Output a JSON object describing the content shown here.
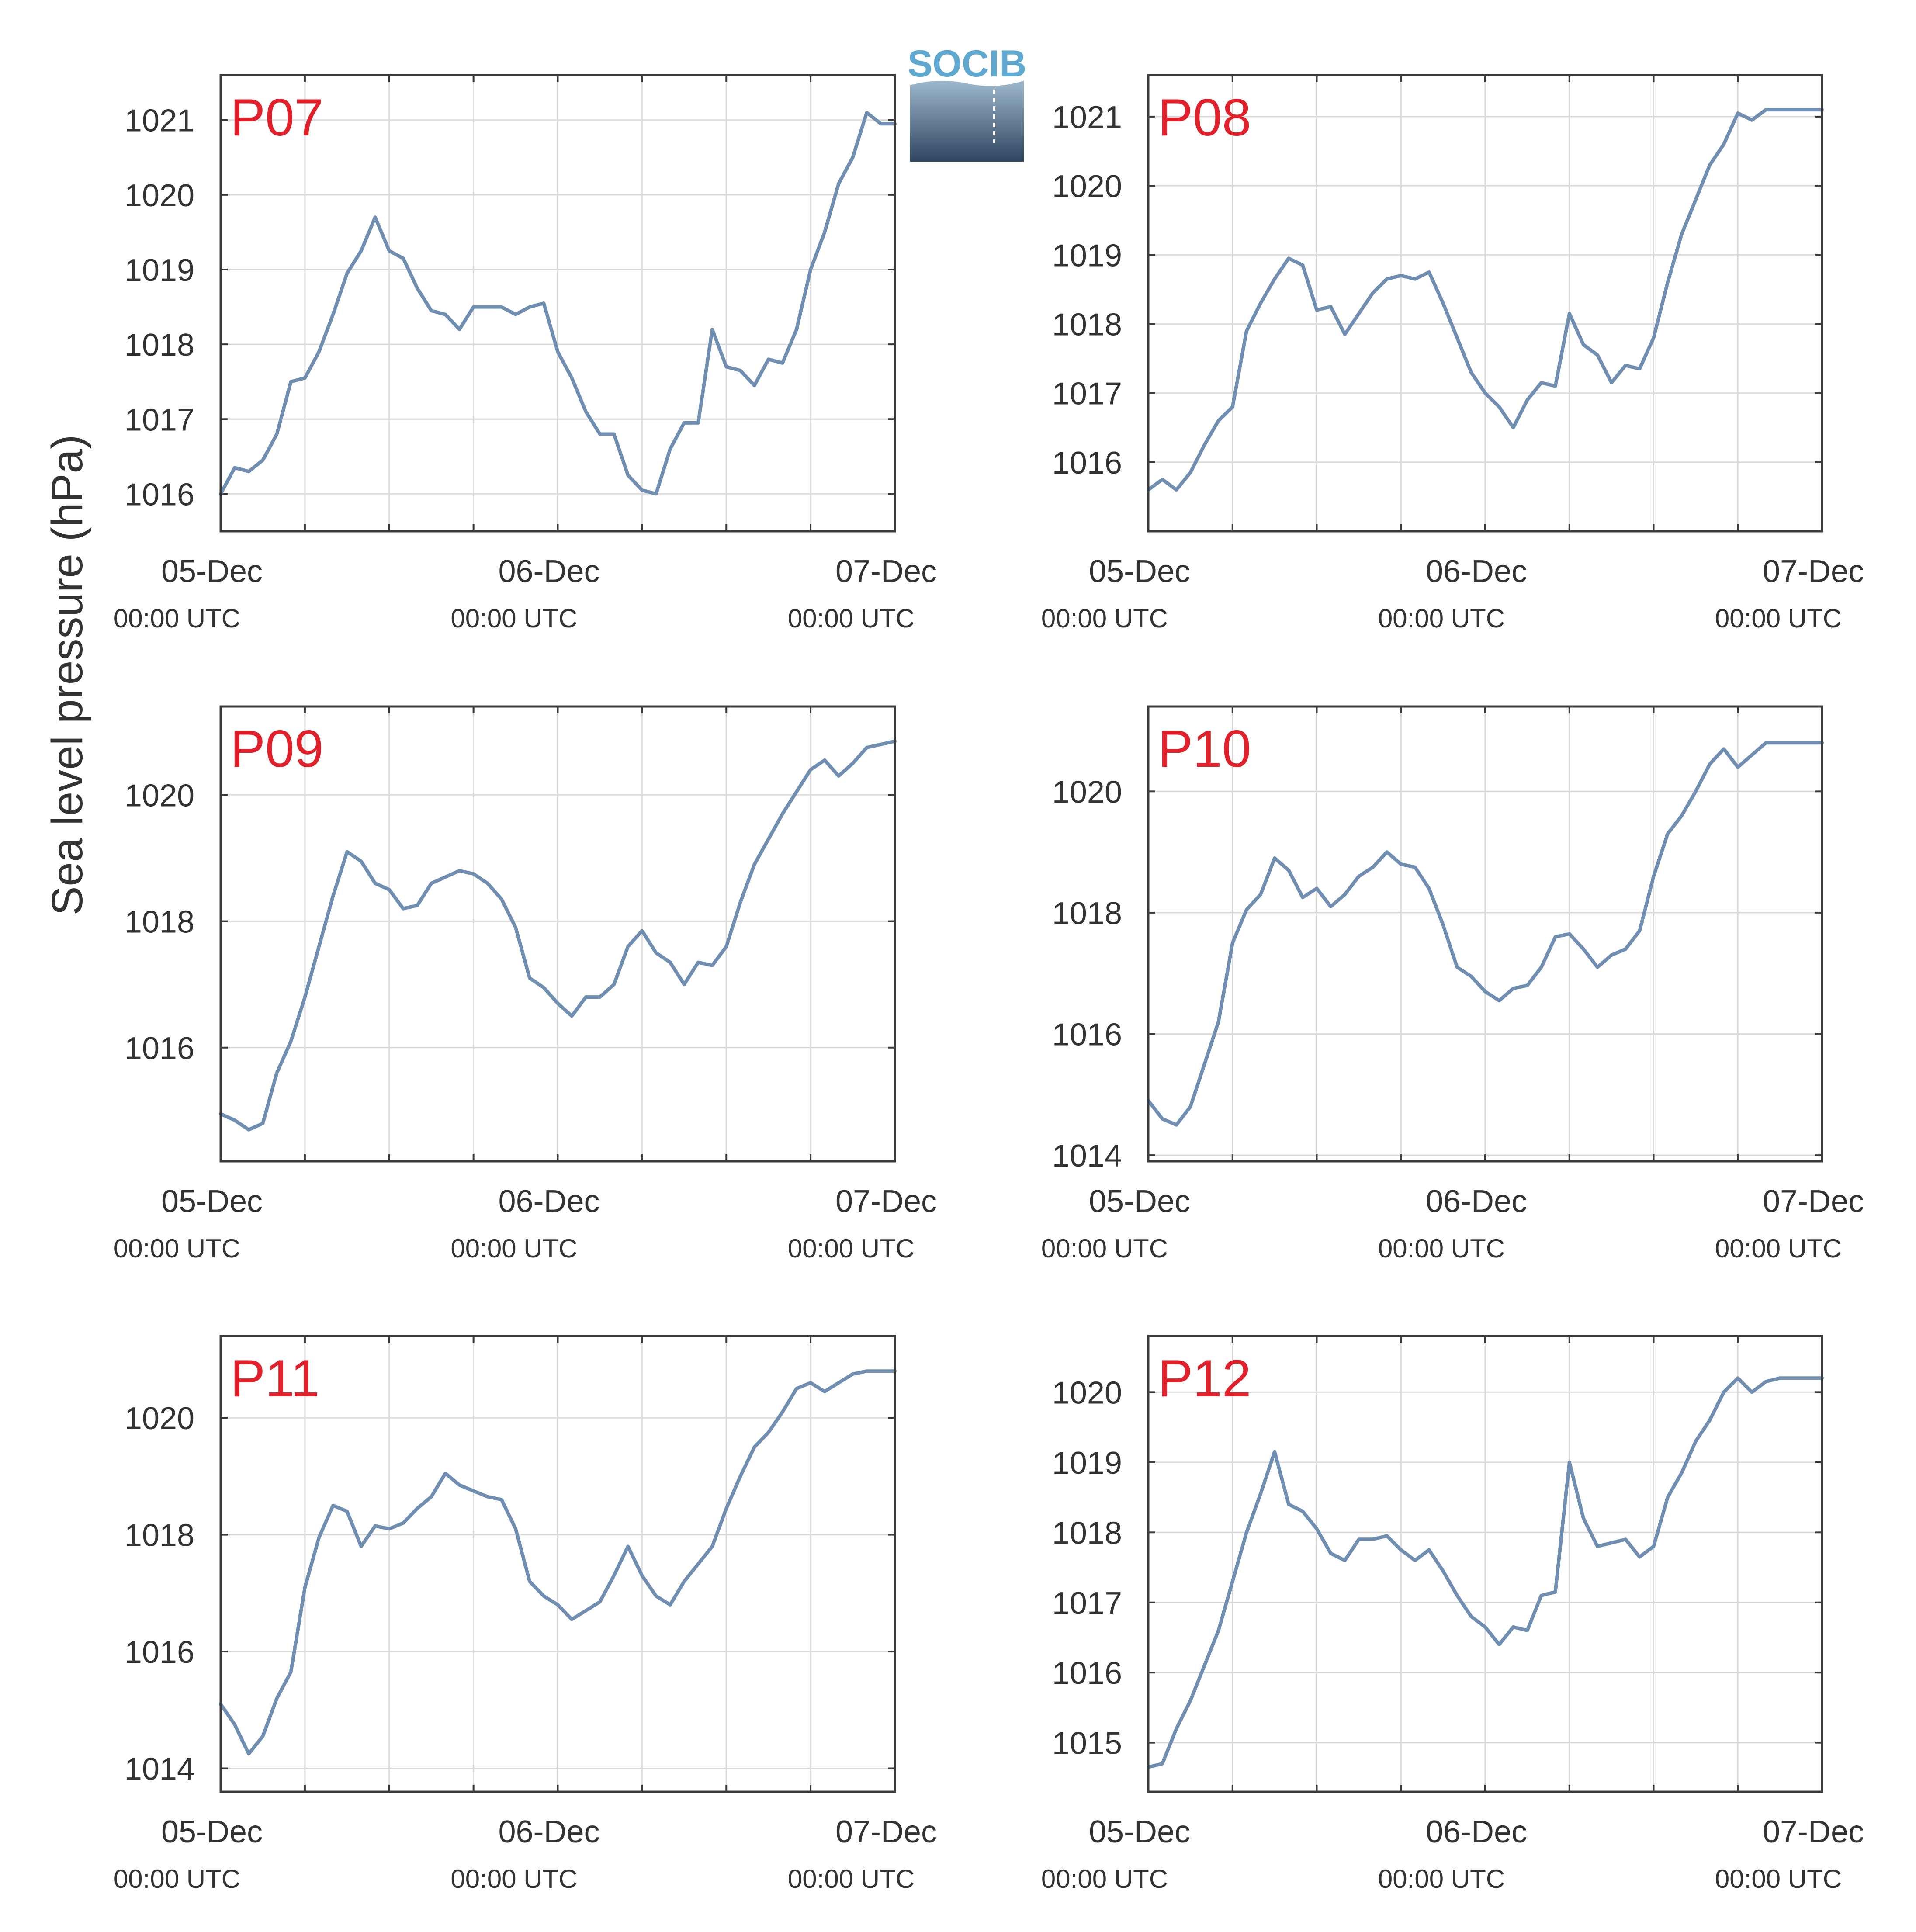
{
  "figure": {
    "ylabel": "Sea level pressure (hPa)",
    "logo_text": "SOCIB",
    "colors": {
      "line": "#6f8eb1",
      "panel_label": "#e0202a",
      "frame": "#3a3a3a",
      "grid": "#d9d9d9",
      "text": "#333333",
      "logo_top": "#5fa8cf",
      "logo_bottom": "#2e4660"
    }
  },
  "chart_data": [
    {
      "type": "line",
      "label": "P07",
      "x_range": [
        "05-Dec 00:00",
        "07-Dec 00:00"
      ],
      "ylim": [
        1015.5,
        1021.6
      ],
      "yticks": [
        1016,
        1017,
        1018,
        1019,
        1020,
        1021
      ],
      "xticks": [
        {
          "date": "05-Dec",
          "time": "00:00 UTC"
        },
        {
          "date": "06-Dec",
          "time": "00:00 UTC"
        },
        {
          "date": "07-Dec",
          "time": "00:00 UTC"
        }
      ],
      "grid": true,
      "x_hours": [
        0,
        1,
        2,
        3,
        4,
        5,
        6,
        7,
        8,
        9,
        10,
        11,
        12,
        13,
        14,
        15,
        16,
        17,
        18,
        19,
        20,
        21,
        22,
        23,
        24,
        25,
        26,
        27,
        28,
        29,
        30,
        31,
        32,
        33,
        34,
        35,
        36,
        37,
        38,
        39,
        40,
        41,
        42,
        43,
        44,
        45,
        46,
        47,
        48
      ],
      "values": [
        1016.0,
        1016.35,
        1016.3,
        1016.45,
        1016.8,
        1017.5,
        1017.55,
        1017.9,
        1018.4,
        1018.95,
        1019.25,
        1019.7,
        1019.25,
        1019.15,
        1018.75,
        1018.45,
        1018.4,
        1018.2,
        1018.5,
        1018.5,
        1018.5,
        1018.4,
        1018.5,
        1018.55,
        1017.9,
        1017.55,
        1017.1,
        1016.8,
        1016.8,
        1016.25,
        1016.05,
        1016.0,
        1016.6,
        1016.95,
        1016.95,
        1018.2,
        1017.7,
        1017.65,
        1017.45,
        1017.8,
        1017.75,
        1018.2,
        1019.0,
        1019.5,
        1020.15,
        1020.5,
        1021.1,
        1020.95,
        1020.95
      ]
    },
    {
      "type": "line",
      "label": "P08",
      "x_range": [
        "05-Dec 00:00",
        "07-Dec 00:00"
      ],
      "ylim": [
        1015.0,
        1021.6
      ],
      "yticks": [
        1016,
        1017,
        1018,
        1019,
        1020,
        1021
      ],
      "xticks": [
        {
          "date": "05-Dec",
          "time": "00:00 UTC"
        },
        {
          "date": "06-Dec",
          "time": "00:00 UTC"
        },
        {
          "date": "07-Dec",
          "time": "00:00 UTC"
        }
      ],
      "grid": true,
      "x_hours": [
        0,
        1,
        2,
        3,
        4,
        5,
        6,
        7,
        8,
        9,
        10,
        11,
        12,
        13,
        14,
        15,
        16,
        17,
        18,
        19,
        20,
        21,
        22,
        23,
        24,
        25,
        26,
        27,
        28,
        29,
        30,
        31,
        32,
        33,
        34,
        35,
        36,
        37,
        38,
        39,
        40,
        41,
        42,
        43,
        44,
        45,
        46,
        47,
        48
      ],
      "values": [
        1015.6,
        1015.75,
        1015.6,
        1015.85,
        1016.25,
        1016.6,
        1016.8,
        1017.9,
        1018.3,
        1018.65,
        1018.95,
        1018.85,
        1018.2,
        1018.25,
        1017.85,
        1018.15,
        1018.45,
        1018.65,
        1018.7,
        1018.65,
        1018.75,
        1018.3,
        1017.8,
        1017.3,
        1017.0,
        1016.8,
        1016.5,
        1016.9,
        1017.15,
        1017.1,
        1018.15,
        1017.7,
        1017.55,
        1017.15,
        1017.4,
        1017.35,
        1017.8,
        1018.6,
        1019.3,
        1019.8,
        1020.3,
        1020.6,
        1021.05,
        1020.95,
        1021.1,
        1021.1,
        1021.1,
        1021.1,
        1021.1
      ]
    },
    {
      "type": "line",
      "label": "P09",
      "x_range": [
        "05-Dec 00:00",
        "07-Dec 00:00"
      ],
      "ylim": [
        1014.2,
        1021.4
      ],
      "yticks": [
        1016,
        1018,
        1020
      ],
      "xticks": [
        {
          "date": "05-Dec",
          "time": "00:00 UTC"
        },
        {
          "date": "06-Dec",
          "time": "00:00 UTC"
        },
        {
          "date": "07-Dec",
          "time": "00:00 UTC"
        }
      ],
      "grid": true,
      "x_hours": [
        0,
        1,
        2,
        3,
        4,
        5,
        6,
        7,
        8,
        9,
        10,
        11,
        12,
        13,
        14,
        15,
        16,
        17,
        18,
        19,
        20,
        21,
        22,
        23,
        24,
        25,
        26,
        27,
        28,
        29,
        30,
        31,
        32,
        33,
        34,
        35,
        36,
        37,
        38,
        39,
        40,
        41,
        42,
        43,
        44,
        45,
        46,
        47,
        48
      ],
      "values": [
        1014.95,
        1014.85,
        1014.7,
        1014.8,
        1015.6,
        1016.1,
        1016.8,
        1017.6,
        1018.4,
        1019.1,
        1018.95,
        1018.6,
        1018.5,
        1018.2,
        1018.25,
        1018.6,
        1018.7,
        1018.8,
        1018.75,
        1018.6,
        1018.35,
        1017.9,
        1017.1,
        1016.95,
        1016.7,
        1016.5,
        1016.8,
        1016.8,
        1017.0,
        1017.6,
        1017.85,
        1017.5,
        1017.35,
        1017.0,
        1017.35,
        1017.3,
        1017.6,
        1018.3,
        1018.9,
        1019.3,
        1019.7,
        1020.05,
        1020.4,
        1020.55,
        1020.3,
        1020.5,
        1020.75,
        1020.8,
        1020.85
      ]
    },
    {
      "type": "line",
      "label": "P10",
      "x_range": [
        "05-Dec 00:00",
        "07-Dec 00:00"
      ],
      "ylim": [
        1013.9,
        1021.4
      ],
      "yticks": [
        1014,
        1016,
        1018,
        1020
      ],
      "xticks": [
        {
          "date": "05-Dec",
          "time": "00:00 UTC"
        },
        {
          "date": "06-Dec",
          "time": "00:00 UTC"
        },
        {
          "date": "07-Dec",
          "time": "00:00 UTC"
        }
      ],
      "grid": true,
      "x_hours": [
        0,
        1,
        2,
        3,
        4,
        5,
        6,
        7,
        8,
        9,
        10,
        11,
        12,
        13,
        14,
        15,
        16,
        17,
        18,
        19,
        20,
        21,
        22,
        23,
        24,
        25,
        26,
        27,
        28,
        29,
        30,
        31,
        32,
        33,
        34,
        35,
        36,
        37,
        38,
        39,
        40,
        41,
        42,
        43,
        44,
        45,
        46,
        47,
        48
      ],
      "values": [
        1014.9,
        1014.6,
        1014.5,
        1014.8,
        1015.5,
        1016.2,
        1017.5,
        1018.05,
        1018.3,
        1018.9,
        1018.7,
        1018.25,
        1018.4,
        1018.1,
        1018.3,
        1018.6,
        1018.75,
        1019.0,
        1018.8,
        1018.75,
        1018.4,
        1017.8,
        1017.1,
        1016.95,
        1016.7,
        1016.55,
        1016.75,
        1016.8,
        1017.1,
        1017.6,
        1017.65,
        1017.4,
        1017.1,
        1017.3,
        1017.4,
        1017.7,
        1018.6,
        1019.3,
        1019.6,
        1020.0,
        1020.45,
        1020.7,
        1020.4,
        1020.6,
        1020.8,
        1020.8,
        1020.8,
        1020.8,
        1020.8
      ]
    },
    {
      "type": "line",
      "label": "P11",
      "x_range": [
        "05-Dec 00:00",
        "07-Dec 00:00"
      ],
      "ylim": [
        1013.6,
        1021.4
      ],
      "yticks": [
        1014,
        1016,
        1018,
        1020
      ],
      "xticks": [
        {
          "date": "05-Dec",
          "time": "00:00 UTC"
        },
        {
          "date": "06-Dec",
          "time": "00:00 UTC"
        },
        {
          "date": "07-Dec",
          "time": "00:00 UTC"
        }
      ],
      "grid": true,
      "x_hours": [
        0,
        1,
        2,
        3,
        4,
        5,
        6,
        7,
        8,
        9,
        10,
        11,
        12,
        13,
        14,
        15,
        16,
        17,
        18,
        19,
        20,
        21,
        22,
        23,
        24,
        25,
        26,
        27,
        28,
        29,
        30,
        31,
        32,
        33,
        34,
        35,
        36,
        37,
        38,
        39,
        40,
        41,
        42,
        43,
        44,
        45,
        46,
        47,
        48
      ],
      "values": [
        1015.1,
        1014.75,
        1014.25,
        1014.55,
        1015.2,
        1015.65,
        1017.1,
        1017.95,
        1018.5,
        1018.4,
        1017.8,
        1018.15,
        1018.1,
        1018.2,
        1018.45,
        1018.65,
        1019.05,
        1018.85,
        1018.75,
        1018.65,
        1018.6,
        1018.1,
        1017.2,
        1016.95,
        1016.8,
        1016.55,
        1016.7,
        1016.85,
        1017.3,
        1017.8,
        1017.3,
        1016.95,
        1016.8,
        1017.2,
        1017.5,
        1017.8,
        1018.45,
        1019.0,
        1019.5,
        1019.75,
        1020.1,
        1020.5,
        1020.6,
        1020.45,
        1020.6,
        1020.75,
        1020.8,
        1020.8,
        1020.8
      ]
    },
    {
      "type": "line",
      "label": "P12",
      "x_range": [
        "05-Dec 00:00",
        "07-Dec 00:00"
      ],
      "ylim": [
        1014.3,
        1020.8
      ],
      "yticks": [
        1015,
        1016,
        1017,
        1018,
        1019,
        1020
      ],
      "xticks": [
        {
          "date": "05-Dec",
          "time": "00:00 UTC"
        },
        {
          "date": "06-Dec",
          "time": "00:00 UTC"
        },
        {
          "date": "07-Dec",
          "time": "00:00 UTC"
        }
      ],
      "grid": true,
      "x_hours": [
        0,
        1,
        2,
        3,
        4,
        5,
        6,
        7,
        8,
        9,
        10,
        11,
        12,
        13,
        14,
        15,
        16,
        17,
        18,
        19,
        20,
        21,
        22,
        23,
        24,
        25,
        26,
        27,
        28,
        29,
        30,
        31,
        32,
        33,
        34,
        35,
        36,
        37,
        38,
        39,
        40,
        41,
        42,
        43,
        44,
        45,
        46,
        47,
        48
      ],
      "values": [
        1014.65,
        1014.7,
        1015.2,
        1015.6,
        1016.1,
        1016.6,
        1017.3,
        1018.0,
        1018.55,
        1019.15,
        1018.4,
        1018.3,
        1018.05,
        1017.7,
        1017.6,
        1017.9,
        1017.9,
        1017.95,
        1017.75,
        1017.6,
        1017.75,
        1017.45,
        1017.1,
        1016.8,
        1016.65,
        1016.4,
        1016.65,
        1016.6,
        1017.1,
        1017.15,
        1019.0,
        1018.2,
        1017.8,
        1017.85,
        1017.9,
        1017.65,
        1017.8,
        1018.5,
        1018.85,
        1019.3,
        1019.6,
        1020.0,
        1020.2,
        1020.0,
        1020.15,
        1020.2,
        1020.2,
        1020.2,
        1020.2
      ]
    }
  ]
}
